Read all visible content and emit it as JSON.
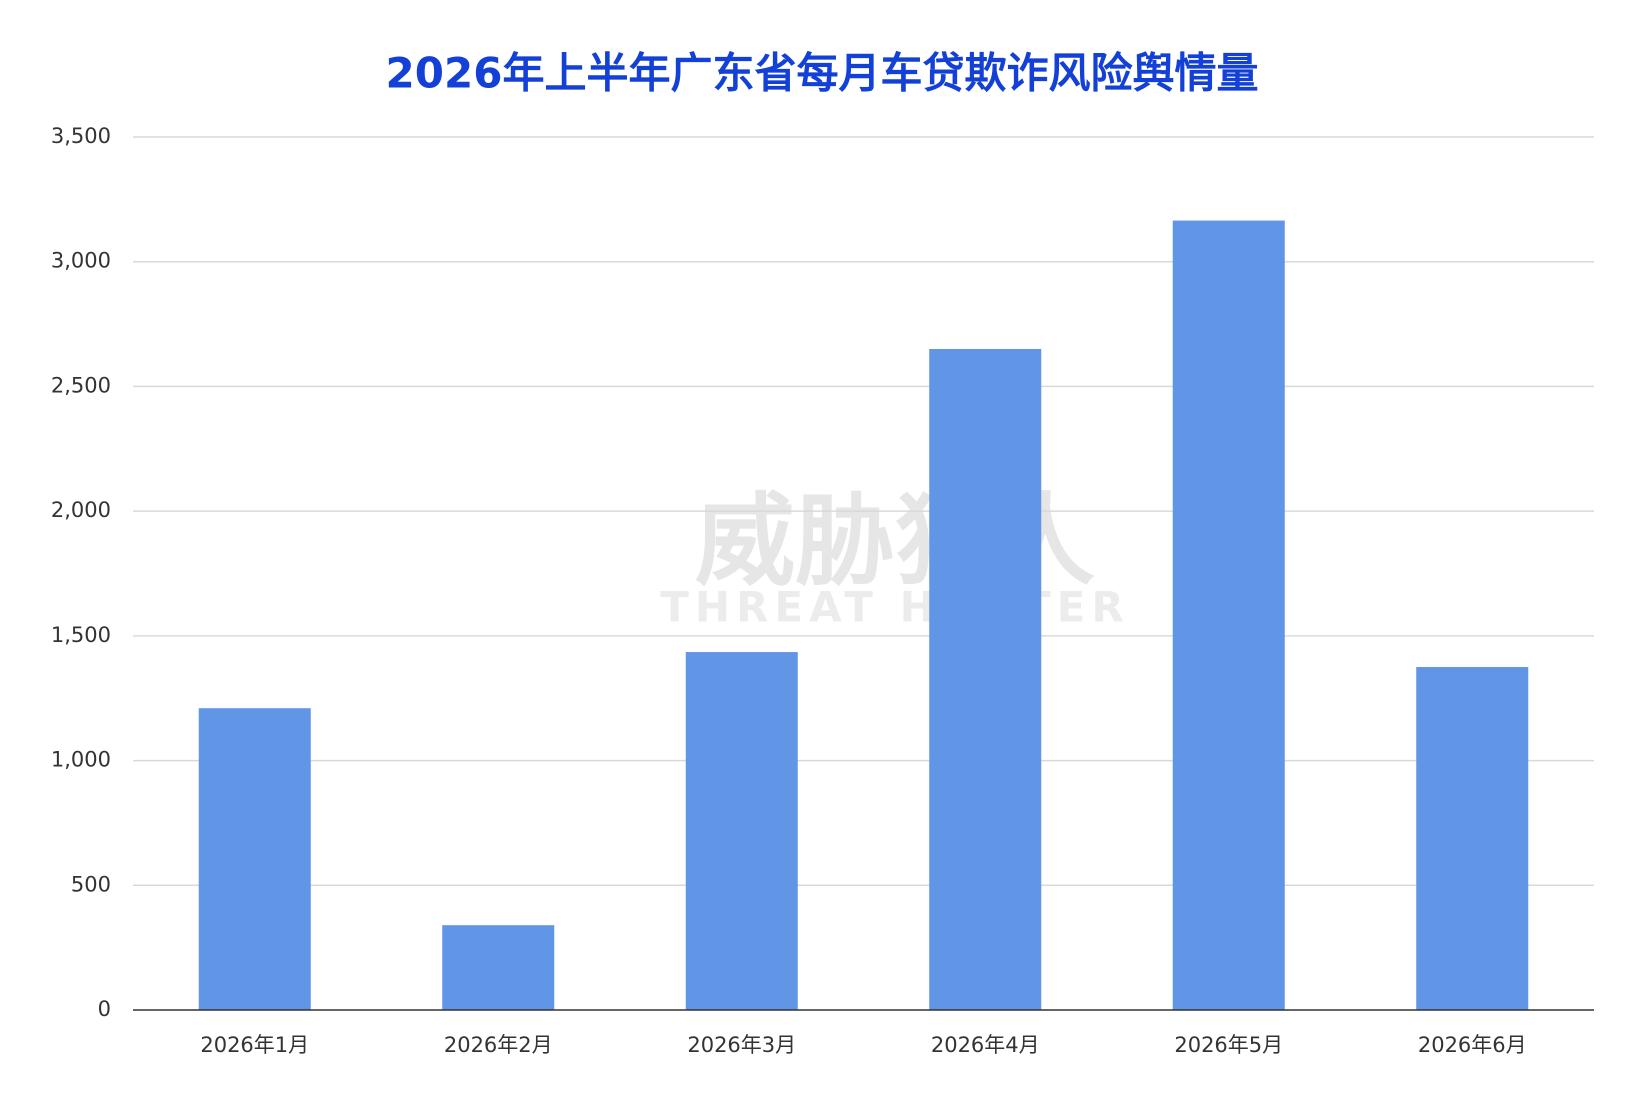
{
  "chart_data": {
    "type": "bar",
    "title": "2026年上半年广东省每月车贷欺诈风险舆情量",
    "watermark": [
      "威胁猎人",
      "THREAT HUNTER"
    ],
    "categories": [
      "2026年1月",
      "2026年2月",
      "2026年3月",
      "2026年4月",
      "2026年5月",
      "2026年6月"
    ],
    "values": [
      1210,
      340,
      1435,
      2650,
      3165,
      1375
    ],
    "color": "#6195e5",
    "ylim": [
      0,
      3500
    ],
    "yticks": [
      0,
      500,
      {
        "value": 1000,
        "label": "1,000"
      },
      {
        "value": 1500,
        "label": "1,500"
      },
      {
        "value": 2000,
        "label": "2,000"
      },
      {
        "value": 2500,
        "label": "2,500"
      },
      {
        "value": 3000,
        "label": "3,000"
      },
      {
        "value": 3500,
        "label": "3,500"
      }
    ],
    "grid": true
  }
}
